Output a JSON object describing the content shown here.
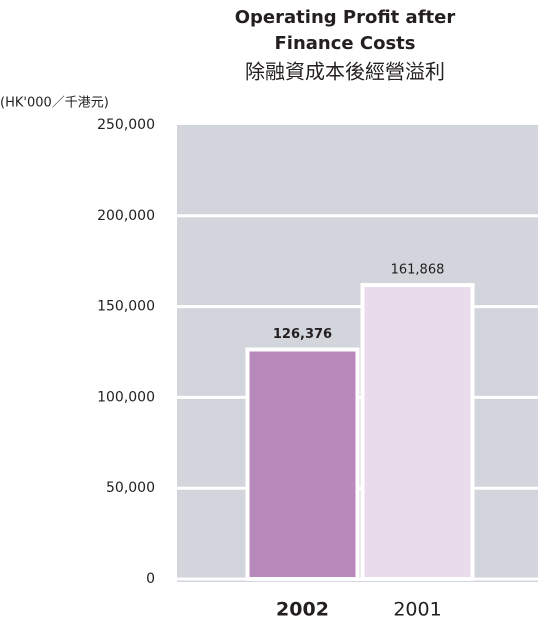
{
  "chart_data": {
    "type": "bar",
    "title": [
      "Operating Profit after",
      "Finance Costs"
    ],
    "subtitle": "除融資成本後經營溢利",
    "y_axis_label": "(HK'000／千港元)",
    "categories": [
      "2002",
      "2001"
    ],
    "values": [
      126376,
      161868
    ],
    "value_labels": [
      "126,376",
      "161,868"
    ],
    "colors": [
      "#b889bb",
      "#e9dbec"
    ],
    "ylim": [
      0,
      250000
    ],
    "yticks": [
      0,
      {
        "value": 50000,
        "label": "50,000"
      },
      {
        "value": 100000,
        "label": "100,000"
      },
      {
        "value": 150000,
        "label": "150,000"
      },
      {
        "value": 200000,
        "label": "200,000"
      },
      {
        "value": 250000,
        "label": "250,000"
      }
    ],
    "grid": true
  }
}
